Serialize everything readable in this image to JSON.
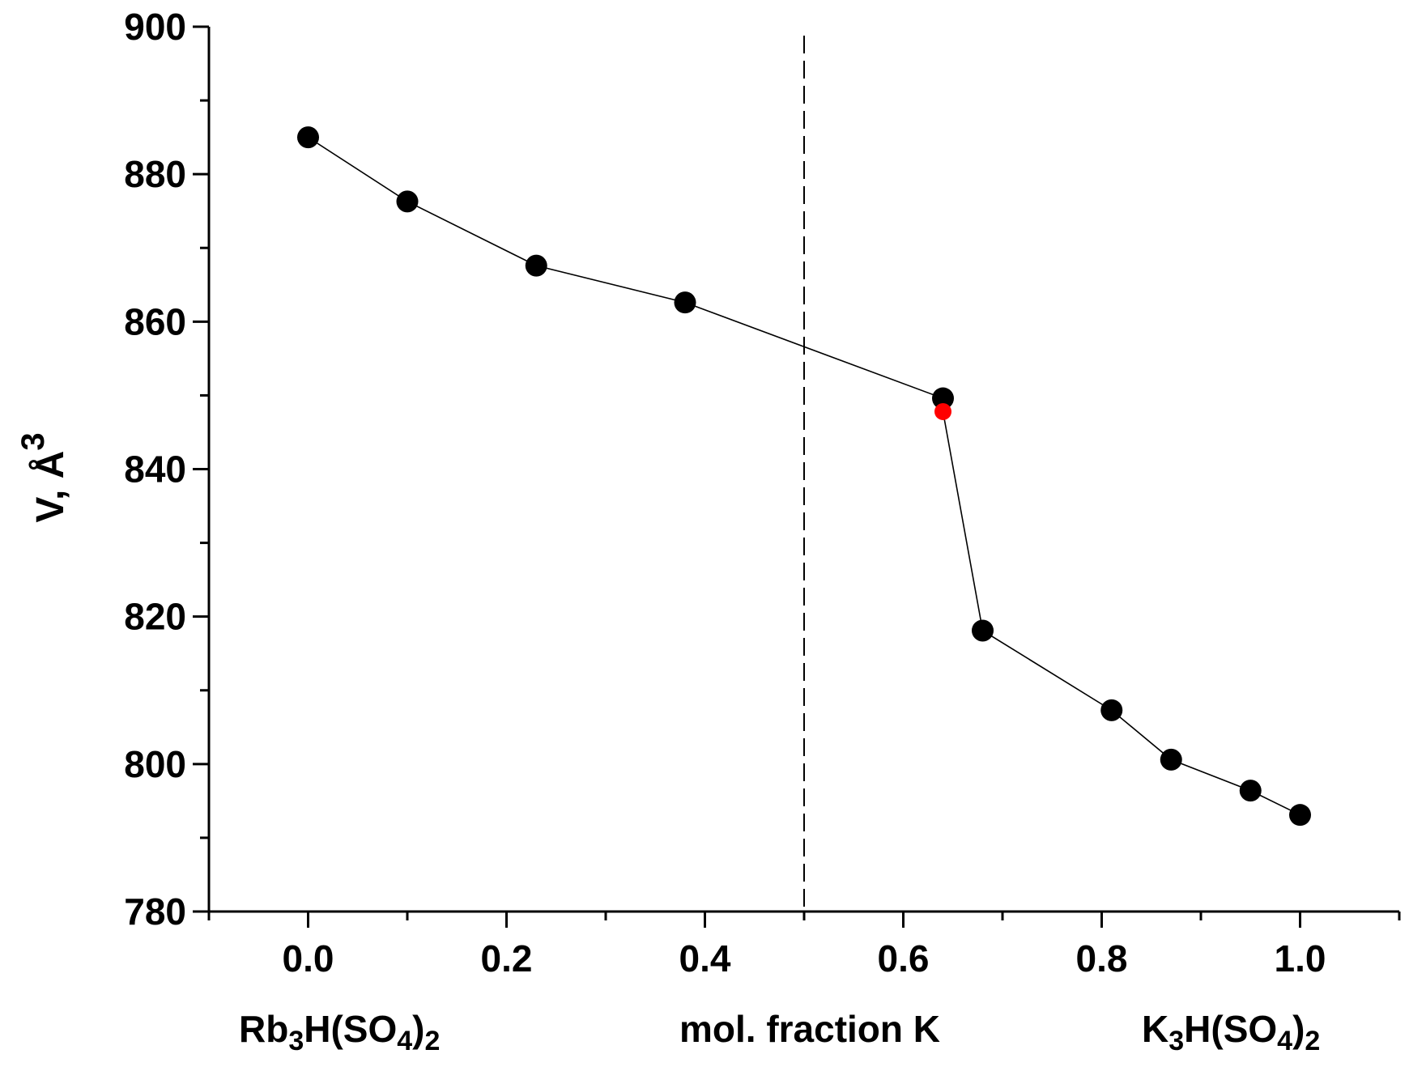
{
  "chart_data": {
    "type": "line",
    "title": "",
    "xlabel": "mol. fraction K",
    "ylabel_main": "V, Å",
    "ylabel_sup": "3",
    "xlim": [
      -0.1,
      1.1
    ],
    "ylim": [
      780,
      900
    ],
    "xticks": [
      0.0,
      0.2,
      0.4,
      0.6,
      0.8,
      1.0
    ],
    "xtick_labels": [
      "0.0",
      "0.2",
      "0.4",
      "0.6",
      "0.8",
      "1.0"
    ],
    "yticks": [
      780,
      800,
      820,
      840,
      860,
      880,
      900
    ],
    "ytick_labels": [
      "780",
      "800",
      "820",
      "840",
      "860",
      "880",
      "900"
    ],
    "left_composition": {
      "base": "Rb",
      "sub1": "3",
      "mid": "H(SO",
      "sub2": "4",
      "close": ")",
      "sub3": "2"
    },
    "right_composition": {
      "base": "K",
      "sub1": "3",
      "mid": "H(SO",
      "sub2": "4",
      "close": ")",
      "sub3": "2"
    },
    "dashed_line_x": 0.5,
    "series": [
      {
        "name": "V",
        "color": "#000000",
        "x": [
          0.0,
          0.1,
          0.23,
          0.38,
          0.64,
          0.64,
          0.68,
          0.81,
          0.87,
          0.95,
          1.0
        ],
        "y": [
          885.0,
          876.3,
          867.6,
          862.6,
          849.6,
          847.8,
          818.1,
          807.3,
          800.6,
          796.4,
          793.1
        ],
        "marker_colors": [
          "#000000",
          "#000000",
          "#000000",
          "#000000",
          "#000000",
          "#ff0000",
          "#000000",
          "#000000",
          "#000000",
          "#000000",
          "#000000"
        ]
      }
    ]
  }
}
